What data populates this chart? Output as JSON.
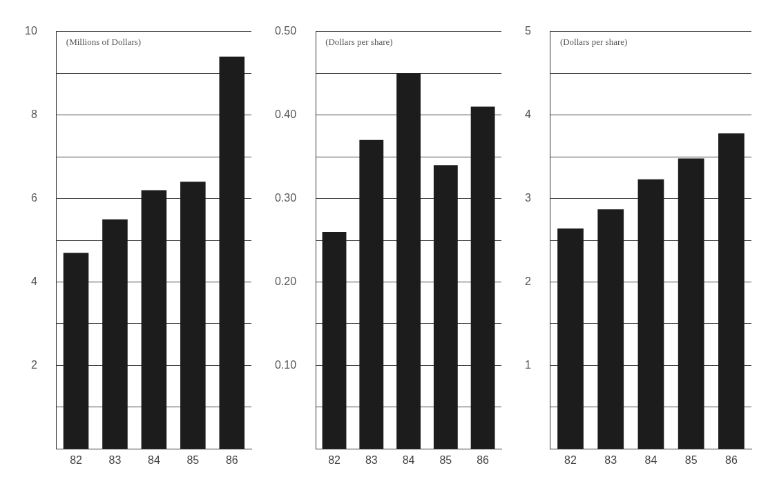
{
  "chart_data": [
    {
      "type": "bar",
      "ylabel": "(Millions of Dollars)",
      "categories": [
        "82",
        "83",
        "84",
        "85",
        "86"
      ],
      "values": [
        4.7,
        5.5,
        6.2,
        6.4,
        9.4
      ],
      "color": "#1c1c1c",
      "ylim": [
        0,
        10
      ],
      "yticks": [
        {
          "value": 1,
          "label": null
        },
        2,
        {
          "value": 3,
          "label": null
        },
        4,
        {
          "value": 5,
          "label": null
        },
        6,
        {
          "value": 7,
          "label": null
        },
        8,
        {
          "value": 9,
          "label": null
        },
        10
      ],
      "grid": "y"
    },
    {
      "type": "bar",
      "ylabel": "(Dollars per share)",
      "categories": [
        "82",
        "83",
        "84",
        "85",
        "86"
      ],
      "values": [
        0.26,
        0.37,
        0.45,
        0.34,
        0.41
      ],
      "color": "#1c1c1c",
      "ylim": [
        0,
        0.5
      ],
      "yticks": [
        {
          "value": 0.05,
          "label": null
        },
        {
          "value": 0.1,
          "label": "0.10"
        },
        {
          "value": 0.15,
          "label": null
        },
        {
          "value": 0.2,
          "label": "0.20"
        },
        {
          "value": 0.25,
          "label": null
        },
        {
          "value": 0.3,
          "label": "0.30"
        },
        {
          "value": 0.35,
          "label": null
        },
        {
          "value": 0.4,
          "label": "0.40"
        },
        {
          "value": 0.45,
          "label": null
        },
        {
          "value": 0.5,
          "label": "0.50"
        }
      ],
      "grid": "y"
    },
    {
      "type": "bar",
      "ylabel": "(Dollars per share)",
      "categories": [
        "82",
        "83",
        "84",
        "85",
        "86"
      ],
      "values": [
        2.64,
        2.87,
        3.23,
        3.48,
        3.78
      ],
      "color": "#1c1c1c",
      "ylim": [
        0,
        5
      ],
      "yticks": [
        {
          "value": 0.5,
          "label": null
        },
        1,
        {
          "value": 1.5,
          "label": null
        },
        2,
        {
          "value": 2.5,
          "label": null
        },
        3,
        {
          "value": 3.5,
          "label": null
        },
        4,
        {
          "value": 4.5,
          "label": null
        },
        5
      ],
      "grid": "y"
    }
  ]
}
